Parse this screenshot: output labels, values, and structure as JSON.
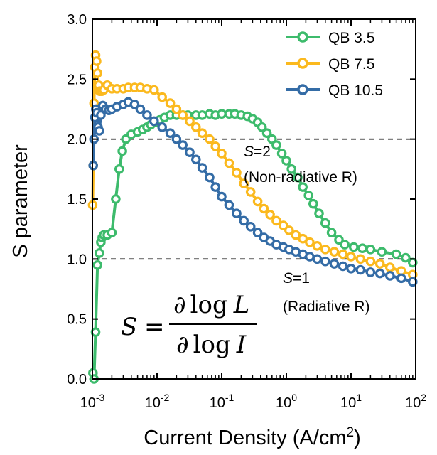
{
  "chart_data": {
    "type": "line",
    "title": "",
    "xlabel": "Current Density (A/cm",
    "xlabel_sup": "2",
    "xlabel_tail": ")",
    "ylabel": "S parameter",
    "xscale": "log",
    "xlim": [
      0.001,
      100
    ],
    "ylim": [
      0.0,
      3.0
    ],
    "y_ticks": [
      "0.0",
      "0.5",
      "1.0",
      "1.5",
      "2.0",
      "2.5",
      "3.0"
    ],
    "x_ticks": [
      {
        "base": "10",
        "exp": "-3"
      },
      {
        "base": "10",
        "exp": "-2"
      },
      {
        "base": "10",
        "exp": "-1"
      },
      {
        "base": "10",
        "exp": "0"
      },
      {
        "base": "10",
        "exp": "1"
      },
      {
        "base": "10",
        "exp": "2"
      }
    ],
    "grid": false,
    "legend_position": "top-right",
    "reference_lines": [
      2.0,
      1.0
    ],
    "series": [
      {
        "name": "QB 3.5",
        "color": "#3dbb6c",
        "x": [
          0.00102,
          0.00106,
          0.00112,
          0.0012,
          0.00128,
          0.00135,
          0.00142,
          0.0015,
          0.0017,
          0.002,
          0.0023,
          0.0026,
          0.0029,
          0.0033,
          0.004,
          0.005,
          0.006,
          0.007,
          0.008,
          0.0095,
          0.011,
          0.013,
          0.016,
          0.02,
          0.025,
          0.03,
          0.04,
          0.05,
          0.065,
          0.08,
          0.1,
          0.13,
          0.16,
          0.2,
          0.25,
          0.3,
          0.36,
          0.42,
          0.5,
          0.6,
          0.7,
          0.85,
          1.0,
          1.2,
          1.5,
          1.8,
          2.2,
          2.6,
          3.2,
          4.0,
          5.0,
          6.5,
          8.0,
          11.0,
          15.0,
          20.0,
          30.0,
          50.0,
          70.0,
          90.0
        ],
        "y": [
          0.05,
          0.0,
          0.39,
          0.95,
          1.05,
          1.14,
          1.18,
          1.2,
          1.2,
          1.22,
          1.5,
          1.75,
          1.9,
          2.0,
          2.04,
          2.06,
          2.08,
          2.1,
          2.12,
          2.14,
          2.16,
          2.18,
          2.2,
          2.2,
          2.2,
          2.2,
          2.2,
          2.2,
          2.21,
          2.2,
          2.21,
          2.21,
          2.21,
          2.2,
          2.19,
          2.17,
          2.14,
          2.1,
          2.05,
          2.0,
          1.95,
          1.88,
          1.82,
          1.75,
          1.68,
          1.6,
          1.53,
          1.46,
          1.38,
          1.3,
          1.22,
          1.16,
          1.12,
          1.1,
          1.09,
          1.08,
          1.06,
          1.04,
          1.01,
          0.97
        ]
      },
      {
        "name": "QB 7.5",
        "color": "#fbb91e",
        "x": [
          0.00101,
          0.00103,
          0.00106,
          0.00109,
          0.00112,
          0.00116,
          0.0012,
          0.00125,
          0.0013,
          0.0014,
          0.0015,
          0.0017,
          0.002,
          0.0024,
          0.003,
          0.0036,
          0.0045,
          0.0055,
          0.007,
          0.009,
          0.012,
          0.016,
          0.02,
          0.025,
          0.032,
          0.04,
          0.05,
          0.065,
          0.08,
          0.1,
          0.13,
          0.17,
          0.22,
          0.28,
          0.36,
          0.45,
          0.56,
          0.7,
          0.9,
          1.1,
          1.4,
          1.8,
          2.3,
          3.0,
          4.0,
          5.5,
          7.5,
          10.0,
          14.0,
          20.0,
          28.0,
          40.0,
          60.0,
          90.0
        ],
        "y": [
          1.45,
          1.78,
          2.3,
          2.6,
          2.7,
          2.65,
          2.55,
          2.45,
          2.4,
          2.4,
          2.41,
          2.45,
          2.42,
          2.42,
          2.42,
          2.43,
          2.43,
          2.43,
          2.42,
          2.41,
          2.35,
          2.3,
          2.25,
          2.2,
          2.15,
          2.1,
          2.05,
          2.0,
          1.94,
          1.88,
          1.8,
          1.72,
          1.63,
          1.56,
          1.48,
          1.42,
          1.37,
          1.32,
          1.28,
          1.24,
          1.2,
          1.17,
          1.14,
          1.11,
          1.08,
          1.06,
          1.04,
          1.02,
          1.0,
          0.98,
          0.96,
          0.93,
          0.9,
          0.87
        ]
      },
      {
        "name": "QB 10.5",
        "color": "#346ca6",
        "x": [
          0.00103,
          0.00106,
          0.00109,
          0.00113,
          0.00117,
          0.00122,
          0.00128,
          0.00135,
          0.00145,
          0.0016,
          0.0018,
          0.002,
          0.0024,
          0.003,
          0.0036,
          0.0045,
          0.0055,
          0.007,
          0.009,
          0.012,
          0.016,
          0.02,
          0.025,
          0.032,
          0.04,
          0.05,
          0.065,
          0.08,
          0.1,
          0.13,
          0.17,
          0.22,
          0.28,
          0.36,
          0.45,
          0.56,
          0.7,
          0.9,
          1.1,
          1.4,
          1.8,
          2.3,
          3.0,
          4.0,
          5.5,
          7.5,
          10.0,
          14.0,
          20.0,
          28.0,
          40.0,
          60.0,
          90.0
        ],
        "y": [
          1.78,
          2.0,
          2.18,
          2.25,
          2.22,
          2.1,
          2.07,
          2.2,
          2.28,
          2.25,
          2.24,
          2.25,
          2.27,
          2.29,
          2.31,
          2.29,
          2.25,
          2.2,
          2.15,
          2.1,
          2.05,
          2.0,
          1.95,
          1.89,
          1.83,
          1.76,
          1.68,
          1.6,
          1.52,
          1.45,
          1.38,
          1.32,
          1.27,
          1.22,
          1.18,
          1.15,
          1.12,
          1.1,
          1.08,
          1.06,
          1.04,
          1.02,
          1.0,
          0.98,
          0.96,
          0.94,
          0.92,
          0.91,
          0.89,
          0.88,
          0.86,
          0.84,
          0.81
        ]
      }
    ]
  },
  "annotations": {
    "s2_var": "S",
    "s2_val": "=2",
    "s2_desc": "(Non-radiative R)",
    "s1_var": "S",
    "s1_val": "=1",
    "s1_desc": "(Radiative R)"
  },
  "formula": {
    "lhs": "S",
    "eq": "=",
    "numerator_d": "∂",
    "numerator_log": "log",
    "numerator_var": "L",
    "denominator_d": "∂",
    "denominator_log": "log",
    "denominator_var": "I"
  }
}
